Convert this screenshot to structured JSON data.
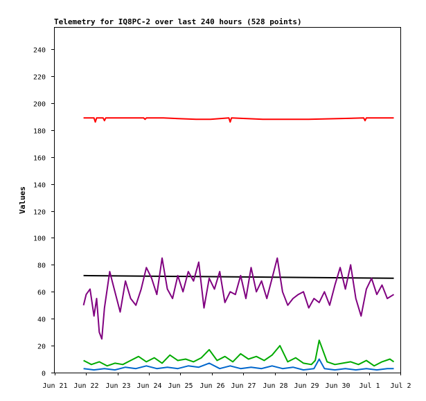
{
  "chart_data": {
    "type": "line",
    "title": "Telemetry for IQ8PC-2 over last 240 hours (528 points)",
    "xlabel": "",
    "ylabel": "Values",
    "x_ticks": [
      "Jun 21",
      "Jun 22",
      "Jun 23",
      "Jun 24",
      "Jun 25",
      "Jun 26",
      "Jun 27",
      "Jun 28",
      "Jun 29",
      "Jun 30",
      "Jul 1",
      "Jul 2"
    ],
    "y_ticks": [
      0,
      20,
      40,
      60,
      80,
      100,
      120,
      140,
      160,
      180,
      200,
      220,
      240
    ],
    "xlim": [
      "Jun 21",
      "Jul 2"
    ],
    "ylim": [
      0,
      256
    ],
    "grid": false,
    "series": [
      {
        "color": "#ff0000",
        "x": [
          "Jun 21 22:00",
          "Jun 22 06:00",
          "Jun 22 07:00",
          "Jun 22 08:00",
          "Jun 22 13:00",
          "Jun 22 14:00",
          "Jun 22 15:00",
          "Jun 23 20:00",
          "Jun 23 21:00",
          "Jun 23 22:00",
          "Jun 24 11:00",
          "Jun 25 12:00",
          "Jun 25 23:00",
          "Jun 26 13:00",
          "Jun 26 14:00",
          "Jun 26 15:00",
          "Jun 27 15:00",
          "Jun 27 22:00",
          "Jun 28 03:00",
          "Jun 28 12:00",
          "Jun 29 02:00",
          "Jun 30 20:00",
          "Jun 30 21:00",
          "Jun 30 22:00",
          "Jul 1 19:00"
        ],
        "values": [
          189,
          189,
          186,
          189,
          189,
          187,
          189,
          189,
          188,
          189,
          189,
          188,
          188,
          189,
          186,
          189,
          188,
          188,
          188,
          188,
          188,
          189,
          187,
          189,
          189
        ]
      },
      {
        "color": "#000000",
        "x": [
          "Jun 21 22:00",
          "Jul 1 19:00"
        ],
        "values": [
          72,
          70
        ]
      },
      {
        "color": "#800080",
        "x": [
          "Jun 21 22:00",
          "Jun 22 00:00",
          "Jun 22 03:00",
          "Jun 22 06:00",
          "Jun 22 08:00",
          "Jun 22 10:00",
          "Jun 22 12:00",
          "Jun 22 14:00",
          "Jun 22 18:00",
          "Jun 22 22:00",
          "Jun 23 02:00",
          "Jun 23 06:00",
          "Jun 23 10:00",
          "Jun 23 14:00",
          "Jun 23 18:00",
          "Jun 23 22:00",
          "Jun 24 02:00",
          "Jun 24 06:00",
          "Jun 24 10:00",
          "Jun 24 14:00",
          "Jun 24 18:00",
          "Jun 24 22:00",
          "Jun 25 02:00",
          "Jun 25 06:00",
          "Jun 25 10:00",
          "Jun 25 14:00",
          "Jun 25 18:00",
          "Jun 25 22:00",
          "Jun 26 02:00",
          "Jun 26 06:00",
          "Jun 26 10:00",
          "Jun 26 14:00",
          "Jun 26 18:00",
          "Jun 26 22:00",
          "Jun 27 02:00",
          "Jun 27 06:00",
          "Jun 27 10:00",
          "Jun 27 14:00",
          "Jun 27 18:00",
          "Jun 27 22:00",
          "Jun 28 02:00",
          "Jun 28 06:00",
          "Jun 28 10:00",
          "Jun 28 14:00",
          "Jun 28 18:00",
          "Jun 28 22:00",
          "Jun 29 02:00",
          "Jun 29 06:00",
          "Jun 29 10:00",
          "Jun 29 14:00",
          "Jun 29 18:00",
          "Jun 29 22:00",
          "Jun 30 02:00",
          "Jun 30 06:00",
          "Jun 30 10:00",
          "Jun 30 14:00",
          "Jun 30 18:00",
          "Jun 30 22:00",
          "Jul 1 02:00",
          "Jul 1 06:00",
          "Jul 1 10:00",
          "Jul 1 14:00",
          "Jul 1 19:00"
        ],
        "values": [
          50,
          58,
          62,
          42,
          55,
          30,
          25,
          48,
          75,
          60,
          45,
          68,
          55,
          50,
          62,
          78,
          70,
          58,
          85,
          62,
          55,
          72,
          60,
          75,
          68,
          82,
          48,
          70,
          62,
          75,
          52,
          60,
          58,
          72,
          55,
          78,
          60,
          68,
          55,
          70,
          85,
          60,
          50,
          55,
          58,
          60,
          48,
          55,
          52,
          60,
          50,
          65,
          78,
          62,
          80,
          55,
          42,
          62,
          70,
          58,
          65,
          55,
          58
        ]
      },
      {
        "color": "#00aa00",
        "x": [
          "Jun 21 22:00",
          "Jun 22 04:00",
          "Jun 22 10:00",
          "Jun 22 16:00",
          "Jun 22 22:00",
          "Jun 23 04:00",
          "Jun 23 10:00",
          "Jun 23 16:00",
          "Jun 23 22:00",
          "Jun 24 04:00",
          "Jun 24 10:00",
          "Jun 24 16:00",
          "Jun 24 22:00",
          "Jun 25 04:00",
          "Jun 25 10:00",
          "Jun 25 16:00",
          "Jun 25 22:00",
          "Jun 26 04:00",
          "Jun 26 10:00",
          "Jun 26 16:00",
          "Jun 26 22:00",
          "Jun 27 04:00",
          "Jun 27 10:00",
          "Jun 27 16:00",
          "Jun 27 22:00",
          "Jun 28 04:00",
          "Jun 28 10:00",
          "Jun 28 16:00",
          "Jun 28 22:00",
          "Jun 29 04:00",
          "Jun 29 07:00",
          "Jun 29 10:00",
          "Jun 29 16:00",
          "Jun 29 22:00",
          "Jun 30 04:00",
          "Jun 30 10:00",
          "Jun 30 16:00",
          "Jun 30 22:00",
          "Jul 1 04:00",
          "Jul 1 10:00",
          "Jul 1 16:00",
          "Jul 1 19:00"
        ],
        "values": [
          9,
          6,
          8,
          5,
          7,
          6,
          9,
          12,
          8,
          11,
          7,
          13,
          9,
          10,
          8,
          11,
          17,
          9,
          12,
          8,
          14,
          10,
          12,
          9,
          13,
          20,
          8,
          11,
          7,
          6,
          9,
          24,
          8,
          6,
          7,
          8,
          6,
          9,
          5,
          8,
          10,
          8
        ]
      },
      {
        "color": "#0066cc",
        "x": [
          "Jun 21 22:00",
          "Jun 22 06:00",
          "Jun 22 14:00",
          "Jun 22 22:00",
          "Jun 23 06:00",
          "Jun 23 14:00",
          "Jun 23 22:00",
          "Jun 24 06:00",
          "Jun 24 14:00",
          "Jun 24 22:00",
          "Jun 25 06:00",
          "Jun 25 14:00",
          "Jun 25 22:00",
          "Jun 26 06:00",
          "Jun 26 14:00",
          "Jun 26 22:00",
          "Jun 27 06:00",
          "Jun 27 14:00",
          "Jun 27 22:00",
          "Jun 28 06:00",
          "Jun 28 14:00",
          "Jun 28 22:00",
          "Jun 29 06:00",
          "Jun 29 10:00",
          "Jun 29 14:00",
          "Jun 29 22:00",
          "Jun 30 06:00",
          "Jun 30 14:00",
          "Jun 30 22:00",
          "Jul 1 06:00",
          "Jul 1 14:00",
          "Jul 1 19:00"
        ],
        "values": [
          3,
          2,
          3,
          2,
          4,
          3,
          5,
          3,
          4,
          3,
          5,
          4,
          7,
          3,
          5,
          3,
          4,
          3,
          5,
          3,
          4,
          2,
          3,
          10,
          3,
          2,
          3,
          2,
          3,
          2,
          3,
          3
        ]
      }
    ]
  }
}
